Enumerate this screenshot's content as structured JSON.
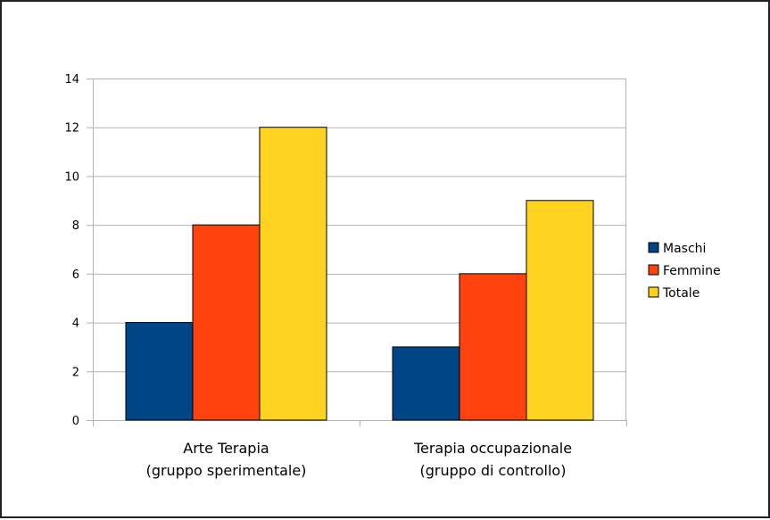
{
  "chart_data": {
    "type": "bar",
    "title": "",
    "xlabel": "",
    "ylabel": "",
    "categories": [
      [
        "Arte Terapia",
        "(gruppo sperimentale)"
      ],
      [
        "Terapia occupazionale",
        "(gruppo di controllo)"
      ]
    ],
    "series": [
      {
        "name": "Maschi",
        "values": [
          4,
          3
        ],
        "color": "#004586"
      },
      {
        "name": "Femmine",
        "values": [
          8,
          6
        ],
        "color": "#ff420e"
      },
      {
        "name": "Totale",
        "values": [
          12,
          9
        ],
        "color": "#ffd320"
      }
    ],
    "ylim": [
      0,
      14
    ],
    "yticks": [
      0,
      2,
      4,
      6,
      8,
      10,
      12,
      14
    ],
    "grid": true,
    "legend_position": "right"
  }
}
